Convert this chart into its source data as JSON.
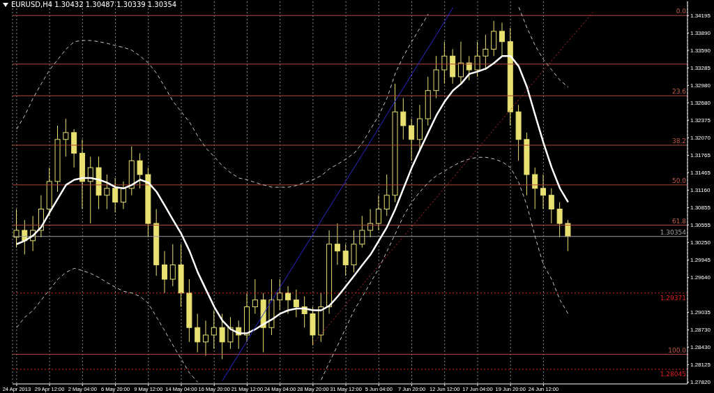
{
  "chart_data": {
    "type": "candlestick",
    "title": "EURUSD,H4 1.30432 1.30487 1.30339 1.30354",
    "color": "#e8e070",
    "grid": "x",
    "categories": [
      "24 Apr 2013",
      null,
      null,
      null,
      "29 Apr 12:00",
      null,
      null,
      null,
      "2 May 04:00",
      null,
      null,
      null,
      "6 May 20:00",
      null,
      null,
      null,
      "9 May 12:00",
      null,
      null,
      null,
      "14 May 04:00",
      null,
      null,
      null,
      "16 May 20:00",
      null,
      null,
      null,
      "21 May 12:00",
      null,
      null,
      null,
      "24 May 04:00",
      null,
      null,
      null,
      "28 May 20:00",
      null,
      null,
      null,
      "31 May 12:00",
      null,
      null,
      null,
      "5 Jun 04:00",
      null,
      null,
      null,
      "7 Jun 20:00",
      null,
      null,
      null,
      "12 Jun 12:00",
      null,
      null,
      null,
      "17 Jun 04:00",
      null,
      null,
      null,
      "19 Jun 20:00",
      null,
      null,
      null,
      "24 Jun 12:00",
      null,
      null,
      null,
      null,
      null,
      null,
      null,
      null,
      null,
      null,
      null,
      null,
      null,
      null,
      null,
      null,
      null
    ],
    "ohlc": [
      [
        1.3034,
        1.3083,
        1.3016,
        1.3046
      ],
      [
        1.3046,
        1.3064,
        1.3004,
        1.3028
      ],
      [
        1.3028,
        1.3071,
        1.301,
        1.3046
      ],
      [
        1.3046,
        1.3107,
        1.3034,
        1.3083
      ],
      [
        1.3083,
        1.3155,
        1.3071,
        1.3131
      ],
      [
        1.3131,
        1.3228,
        1.3113,
        1.3204
      ],
      [
        1.3204,
        1.324,
        1.3174,
        1.3216
      ],
      [
        1.3216,
        1.3222,
        1.3155,
        1.318
      ],
      [
        1.318,
        1.3204,
        1.3083,
        1.3131
      ],
      [
        1.3131,
        1.3174,
        1.3058,
        1.3155
      ],
      [
        1.3155,
        1.3174,
        1.3083,
        1.3107
      ],
      [
        1.3107,
        1.3143,
        1.3083,
        1.3119
      ],
      [
        1.3119,
        1.3137,
        1.3077,
        1.3095
      ],
      [
        1.3095,
        1.3131,
        1.3083,
        1.3119
      ],
      [
        1.3119,
        1.3192,
        1.3107,
        1.3167
      ],
      [
        1.3167,
        1.318,
        1.3119,
        1.3143
      ],
      [
        1.3143,
        1.3155,
        1.3034,
        1.3058
      ],
      [
        1.3058,
        1.3083,
        1.2967,
        1.2986
      ],
      [
        1.2986,
        1.301,
        1.2937,
        1.2961
      ],
      [
        1.2961,
        1.3022,
        1.2949,
        1.2986
      ],
      [
        1.2986,
        1.3022,
        1.2913,
        1.2937
      ],
      [
        1.2937,
        1.2961,
        1.2852,
        1.2877
      ],
      [
        1.2877,
        1.2901,
        1.2834,
        1.2852
      ],
      [
        1.2852,
        1.2889,
        1.2828,
        1.2864
      ],
      [
        1.2864,
        1.2907,
        1.284,
        1.2877
      ],
      [
        1.2877,
        1.2901,
        1.2822,
        1.2852
      ],
      [
        1.2852,
        1.2895,
        1.284,
        1.2877
      ],
      [
        1.2877,
        1.2889,
        1.284,
        1.2864
      ],
      [
        1.2864,
        1.2937,
        1.2852,
        1.2913
      ],
      [
        1.2913,
        1.2961,
        1.2901,
        1.2925
      ],
      [
        1.2925,
        1.2937,
        1.2834,
        1.2877
      ],
      [
        1.2877,
        1.2961,
        1.2864,
        1.2925
      ],
      [
        1.2925,
        1.2961,
        1.2907,
        1.2937
      ],
      [
        1.2937,
        1.2949,
        1.2901,
        1.2925
      ],
      [
        1.2925,
        1.2943,
        1.2895,
        1.2913
      ],
      [
        1.2913,
        1.2931,
        1.2877,
        1.2901
      ],
      [
        1.2901,
        1.2913,
        1.2846,
        1.2864
      ],
      [
        1.2864,
        1.2937,
        1.2852,
        1.2913
      ],
      [
        1.2913,
        1.3046,
        1.2901,
        1.3022
      ],
      [
        1.3022,
        1.3058,
        1.2986,
        1.301
      ],
      [
        1.301,
        1.3022,
        1.2967,
        1.2986
      ],
      [
        1.2986,
        1.3046,
        1.2973,
        1.3022
      ],
      [
        1.3022,
        1.3071,
        1.3016,
        1.3046
      ],
      [
        1.3046,
        1.3083,
        1.3034,
        1.3058
      ],
      [
        1.3058,
        1.3107,
        1.3046,
        1.3083
      ],
      [
        1.3083,
        1.3143,
        1.3071,
        1.3107
      ],
      [
        1.3107,
        1.3301,
        1.3095,
        1.3252
      ],
      [
        1.3252,
        1.3276,
        1.3204,
        1.3228
      ],
      [
        1.3228,
        1.324,
        1.3167,
        1.3204
      ],
      [
        1.3204,
        1.3264,
        1.3186,
        1.324
      ],
      [
        1.324,
        1.3313,
        1.3228,
        1.3289
      ],
      [
        1.3289,
        1.3349,
        1.3276,
        1.3325
      ],
      [
        1.3325,
        1.3374,
        1.3301,
        1.3349
      ],
      [
        1.3349,
        1.3361,
        1.3301,
        1.3313
      ],
      [
        1.3313,
        1.3374,
        1.3301,
        1.3337
      ],
      [
        1.3337,
        1.3349,
        1.3307,
        1.3325
      ],
      [
        1.3325,
        1.3374,
        1.3313,
        1.3349
      ],
      [
        1.3349,
        1.3386,
        1.3325,
        1.3361
      ],
      [
        1.3361,
        1.341,
        1.3349,
        1.3392
      ],
      [
        1.3392,
        1.3407,
        1.3349,
        1.3374
      ],
      [
        1.3374,
        1.3398,
        1.3228,
        1.3252
      ],
      [
        1.3252,
        1.3264,
        1.3167,
        1.3204
      ],
      [
        1.3204,
        1.3216,
        1.3107,
        1.3143
      ],
      [
        1.3143,
        1.3155,
        1.3083,
        1.3119
      ],
      [
        1.3119,
        1.3143,
        1.3083,
        1.3107
      ],
      [
        1.3107,
        1.3119,
        1.3058,
        1.3083
      ],
      [
        1.3083,
        1.3095,
        1.3034,
        1.3058
      ],
      [
        1.3058,
        1.3064,
        1.301,
        1.30354
      ],
      null,
      null,
      null,
      null,
      null,
      null,
      null,
      null,
      null,
      null,
      null,
      null,
      null,
      null
    ],
    "series": [
      {
        "type": "line",
        "color": "#ffffff",
        "values": [
          1.3022,
          1.3028,
          1.3037,
          1.3052,
          1.3077,
          1.3101,
          1.3125,
          1.3134,
          1.3137,
          1.3137,
          1.3134,
          1.3129,
          1.3121,
          1.3119,
          1.3125,
          1.3134,
          1.3129,
          1.3113,
          1.3089,
          1.3064,
          1.304,
          1.301,
          1.2973,
          1.2943,
          1.2913,
          1.2889,
          1.2874,
          1.2867,
          1.2867,
          1.2874,
          1.2883,
          1.2891,
          1.2901,
          1.2907,
          1.291,
          1.291,
          1.2907,
          1.2907,
          1.2915,
          1.2931,
          1.2949,
          1.2967,
          1.2986,
          1.3004,
          1.3028,
          1.3052,
          1.3083,
          1.3119,
          1.3155,
          1.3186,
          1.3216,
          1.3246,
          1.327,
          1.3289,
          1.3301,
          1.3318,
          1.3322,
          1.3327,
          1.3337,
          1.3349,
          1.3349,
          1.3331,
          1.3295,
          1.3246,
          1.3198,
          1.3155,
          1.3119,
          1.3095,
          null,
          null,
          null,
          null,
          null,
          null,
          null,
          null,
          null,
          null,
          null,
          null,
          null,
          null
        ]
      },
      {
        "type": "line",
        "color": "#c8c8c8",
        "line_style": "dashed",
        "values": [
          1.3222,
          1.3246,
          1.3276,
          1.3301,
          1.3325,
          1.3343,
          1.3361,
          1.3374,
          1.3376,
          1.3376,
          1.3374,
          1.3371,
          1.3367,
          1.3364,
          1.3359,
          1.3349,
          1.3337,
          1.3319,
          1.3295,
          1.327,
          1.3252,
          1.3234,
          1.321,
          1.3189,
          1.3174,
          1.3158,
          1.3146,
          1.3137,
          1.3134,
          1.3129,
          1.3125,
          1.3121,
          1.3121,
          1.3121,
          1.3124,
          1.3129,
          1.3134,
          1.3141,
          1.3153,
          1.3161,
          1.317,
          1.318,
          1.3198,
          1.3222,
          1.3246,
          1.3276,
          1.3319,
          1.3349,
          1.3374,
          1.3398,
          1.3422,
          null,
          null,
          null,
          null,
          null,
          null,
          null,
          null,
          null,
          null,
          1.3434,
          1.3398,
          1.3367,
          1.3343,
          1.3325,
          1.3307,
          1.3295,
          null,
          null,
          null,
          null,
          null,
          null,
          null,
          null,
          null,
          null,
          null,
          null,
          null,
          null
        ]
      },
      {
        "type": "line",
        "color": "#c8c8c8",
        "line_style": "dashed",
        "values": [
          1.2877,
          1.2895,
          1.2907,
          1.2925,
          1.2943,
          1.2961,
          1.2973,
          1.298,
          1.2976,
          1.2971,
          1.2964,
          1.2955,
          1.2947,
          1.294,
          1.2937,
          1.2931,
          1.2919,
          1.2895,
          1.2871,
          1.2846,
          1.2822,
          1.2798,
          1.2782,
          null,
          null,
          null,
          null,
          null,
          null,
          null,
          null,
          null,
          null,
          null,
          null,
          null,
          null,
          1.2786,
          1.2817,
          1.2846,
          1.2877,
          1.2907,
          1.2931,
          1.2955,
          1.298,
          1.301,
          1.304,
          1.3071,
          1.3095,
          1.3113,
          1.3129,
          1.3141,
          1.3149,
          1.3158,
          1.3165,
          1.317,
          1.3173,
          1.3173,
          1.317,
          1.3165,
          1.3155,
          1.3129,
          1.3089,
          1.3034,
          1.2986,
          1.2961,
          1.2925,
          1.2901,
          null,
          null,
          null,
          null,
          null,
          null,
          null,
          null,
          null,
          null,
          null,
          null,
          null,
          null
        ]
      },
      {
        "type": "line",
        "color": "#2a2ad0",
        "values": [
          null,
          null,
          null,
          null,
          null,
          null,
          null,
          null,
          null,
          null,
          null,
          null,
          null,
          null,
          null,
          null,
          null,
          null,
          null,
          null,
          null,
          null,
          null,
          null,
          null,
          1.2785,
          1.2808,
          1.2831,
          1.2854,
          1.2878,
          1.2901,
          1.2924,
          1.2947,
          1.297,
          1.2993,
          1.3016,
          1.3039,
          1.3063,
          1.3086,
          1.3109,
          1.3132,
          1.3155,
          1.3178,
          1.3201,
          1.3224,
          1.3248,
          1.3271,
          1.3294,
          1.3317,
          1.334,
          1.3363,
          1.3386,
          1.3409,
          1.3433,
          null,
          null,
          null,
          null,
          null,
          null,
          null,
          null,
          null,
          null,
          null,
          null,
          null,
          null,
          null,
          null,
          null,
          null,
          null,
          null,
          null,
          null,
          null,
          null,
          null,
          null,
          null,
          null
        ]
      },
      {
        "type": "line",
        "color": "#c03030",
        "line_style": "dotted",
        "values": [
          null,
          null,
          null,
          null,
          null,
          null,
          null,
          null,
          null,
          null,
          null,
          null,
          null,
          null,
          null,
          null,
          null,
          null,
          null,
          null,
          null,
          null,
          null,
          null,
          null,
          null,
          null,
          null,
          null,
          null,
          null,
          null,
          null,
          null,
          null,
          null,
          1.2849,
          1.2866,
          1.2883,
          1.29,
          1.2917,
          1.2934,
          1.2951,
          1.2968,
          1.2985,
          1.3002,
          1.3019,
          1.3035,
          1.3052,
          1.3069,
          1.3086,
          1.3103,
          1.312,
          1.3137,
          1.3154,
          1.3171,
          1.3188,
          1.3205,
          1.3222,
          1.3239,
          1.3256,
          1.3273,
          1.329,
          1.3307,
          1.3324,
          1.3341,
          1.3358,
          1.3375,
          1.3391,
          1.3408,
          1.3425,
          null,
          null,
          null,
          null,
          null,
          null,
          null,
          null,
          null,
          null,
          null
        ]
      }
    ],
    "annotations": [
      {
        "text": "0.0",
        "y": 1.34195
      },
      {
        "text": "23.6",
        "y": 1.328
      },
      {
        "text": "38.2",
        "y": 1.3194
      },
      {
        "text": "50.0",
        "y": 1.3125
      },
      {
        "text": "61.8",
        "y": 1.3055
      },
      {
        "text": "100.0",
        "y": 1.28305
      }
    ],
    "ylim": [
      1.2779,
      1.3444
    ],
    "yticks": [
      1.34195,
      {
        "value": 1.3389,
        "label": "1.33890"
      },
      {
        "value": 1.3359,
        "label": "1.33590"
      },
      1.33285,
      {
        "value": 1.3298,
        "label": "1.32980"
      },
      {
        "value": 1.3268,
        "label": "1.32680"
      },
      1.32375,
      {
        "value": 1.3207,
        "label": "1.32070"
      },
      1.31765,
      1.31465,
      {
        "value": 1.3116,
        "label": "1.31160"
      },
      1.30855,
      1.30555,
      {
        "value": 1.3025,
        "label": "1.30250"
      },
      1.29945,
      {
        "value": 1.2964,
        "label": "1.29640"
      },
      1.29035,
      {
        "value": 1.2873,
        "label": "1.28730"
      },
      {
        "value": 1.2843,
        "label": "1.28430"
      },
      1.28125,
      {
        "value": 1.2782,
        "label": "1.27820"
      }
    ],
    "ref_lines": [
      {
        "axis": "y",
        "value": 1.34195,
        "color": "#b04a3a"
      },
      {
        "axis": "y",
        "value": 1.3335,
        "color": "#b04a3a"
      },
      {
        "axis": "y",
        "value": 1.328,
        "color": "#b04a3a"
      },
      {
        "axis": "y",
        "value": 1.3194,
        "color": "#b04a3a"
      },
      {
        "axis": "y",
        "value": 1.3125,
        "color": "#b04a3a"
      },
      {
        "axis": "y",
        "value": 1.3055,
        "color": "#b04a3a"
      },
      {
        "axis": "y",
        "value": 1.28305,
        "color": "#b04a3a"
      },
      {
        "axis": "y",
        "value": 1.30354,
        "label": "1.30354",
        "color": "#a0a0a0"
      },
      {
        "axis": "y",
        "value": 1.29371,
        "label": "1.29371",
        "color": "#e02020",
        "line_style": "dotted"
      },
      {
        "axis": "y",
        "value": 1.28045,
        "label": "1.28045",
        "color": "#e02020",
        "line_style": "dotted"
      }
    ]
  }
}
